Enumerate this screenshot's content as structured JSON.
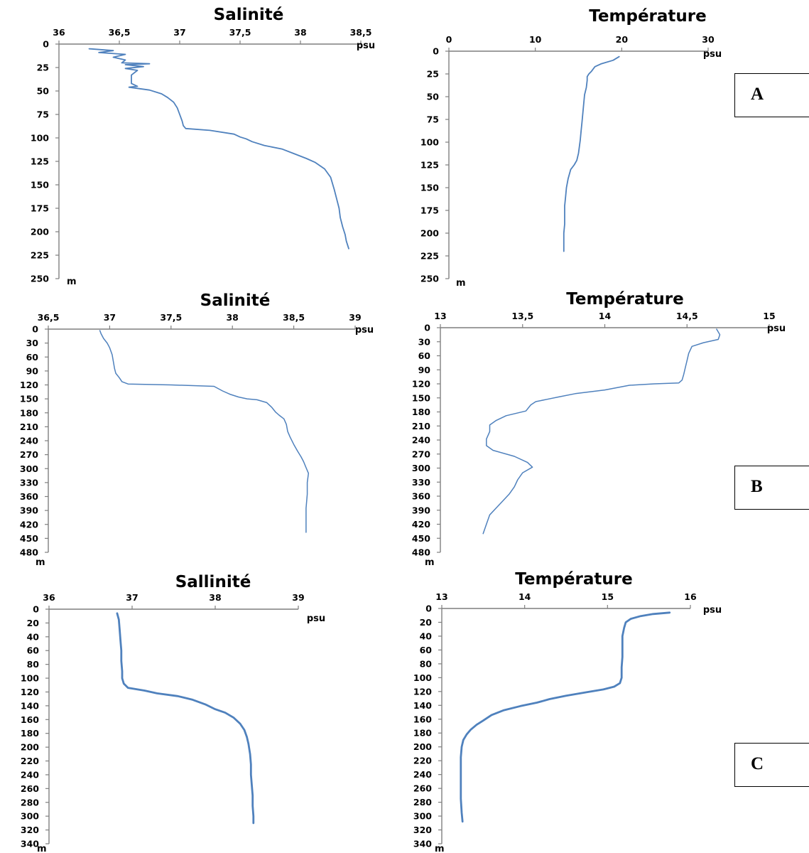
{
  "figure": {
    "line_color": "#4f81bd",
    "panels": [
      "A",
      "B",
      "C"
    ]
  },
  "chart_data": [
    {
      "type": "line",
      "title": "Salinité",
      "x_unit": "psu",
      "y_unit": "m",
      "x_ticks": [
        "36",
        "36,5",
        "37",
        "37,5",
        "38",
        "38,5"
      ],
      "xlim": [
        36,
        38.5
      ],
      "y_ticks": [
        "0",
        "25",
        "50",
        "75",
        "100",
        "125",
        "150",
        "175",
        "200",
        "225",
        "250"
      ],
      "ylim": [
        0,
        250
      ],
      "series": [
        {
          "values": [
            [
              36.25,
              5
            ],
            [
              36.45,
              7
            ],
            [
              36.33,
              9
            ],
            [
              36.55,
              11
            ],
            [
              36.45,
              14
            ],
            [
              36.55,
              17
            ],
            [
              36.52,
              20
            ],
            [
              36.75,
              21
            ],
            [
              36.55,
              22
            ],
            [
              36.7,
              24
            ],
            [
              36.55,
              26
            ],
            [
              36.65,
              28
            ],
            [
              36.6,
              33
            ],
            [
              36.6,
              38
            ],
            [
              36.6,
              42
            ],
            [
              36.65,
              45
            ],
            [
              36.58,
              46
            ],
            [
              36.75,
              49
            ],
            [
              36.85,
              53
            ],
            [
              36.9,
              57
            ],
            [
              36.95,
              62
            ],
            [
              36.98,
              68
            ],
            [
              37.0,
              75
            ],
            [
              37.02,
              82
            ],
            [
              37.03,
              87
            ],
            [
              37.05,
              90
            ],
            [
              37.25,
              92
            ],
            [
              37.45,
              96
            ],
            [
              37.5,
              99
            ],
            [
              37.55,
              101
            ],
            [
              37.6,
              104
            ],
            [
              37.7,
              108
            ],
            [
              37.85,
              112
            ],
            [
              37.95,
              117
            ],
            [
              38.05,
              122
            ],
            [
              38.12,
              126
            ],
            [
              38.2,
              133
            ],
            [
              38.25,
              142
            ],
            [
              38.28,
              155
            ],
            [
              38.3,
              165
            ],
            [
              38.32,
              175
            ],
            [
              38.33,
              185
            ],
            [
              38.35,
              195
            ],
            [
              38.37,
              203
            ],
            [
              38.38,
              210
            ],
            [
              38.4,
              218
            ]
          ]
        }
      ]
    },
    {
      "type": "line",
      "title": "Température",
      "x_unit": "psu",
      "y_unit": "m",
      "x_ticks": [
        "0",
        "10",
        "20",
        "30"
      ],
      "xlim": [
        0,
        30
      ],
      "y_ticks": [
        "0",
        "25",
        "50",
        "75",
        "100",
        "125",
        "150",
        "175",
        "200",
        "225",
        "250"
      ],
      "ylim": [
        0,
        250
      ],
      "series": [
        {
          "values": [
            [
              19.7,
              6
            ],
            [
              19.0,
              10
            ],
            [
              17.6,
              14
            ],
            [
              16.9,
              17
            ],
            [
              16.5,
              22
            ],
            [
              16.2,
              25
            ],
            [
              16.0,
              28
            ],
            [
              16.0,
              32
            ],
            [
              15.9,
              40
            ],
            [
              15.7,
              48
            ],
            [
              15.6,
              58
            ],
            [
              15.5,
              68
            ],
            [
              15.4,
              78
            ],
            [
              15.3,
              88
            ],
            [
              15.2,
              98
            ],
            [
              15.1,
              105
            ],
            [
              15.0,
              112
            ],
            [
              14.8,
              120
            ],
            [
              14.5,
              125
            ],
            [
              14.1,
              130
            ],
            [
              13.8,
              140
            ],
            [
              13.6,
              150
            ],
            [
              13.5,
              160
            ],
            [
              13.4,
              170
            ],
            [
              13.4,
              180
            ],
            [
              13.4,
              190
            ],
            [
              13.3,
              200
            ],
            [
              13.3,
              210
            ],
            [
              13.3,
              220
            ]
          ]
        }
      ]
    },
    {
      "type": "line",
      "title": "Salinité",
      "x_unit": "psu",
      "y_unit": "m",
      "x_ticks": [
        "36,5",
        "37",
        "37,5",
        "38",
        "38,5",
        "39"
      ],
      "xlim": [
        36.5,
        39
      ],
      "y_ticks": [
        "0",
        "30",
        "60",
        "90",
        "120",
        "150",
        "180",
        "210",
        "240",
        "270",
        "300",
        "330",
        "360",
        "390",
        "420",
        "450",
        "480"
      ],
      "ylim": [
        0,
        480
      ],
      "series": [
        {
          "values": [
            [
              36.92,
              3
            ],
            [
              36.93,
              10
            ],
            [
              36.95,
              20
            ],
            [
              36.98,
              30
            ],
            [
              37.0,
              40
            ],
            [
              37.02,
              55
            ],
            [
              37.03,
              70
            ],
            [
              37.04,
              85
            ],
            [
              37.05,
              95
            ],
            [
              37.08,
              105
            ],
            [
              37.1,
              113
            ],
            [
              37.15,
              118
            ],
            [
              37.5,
              120
            ],
            [
              37.85,
              123
            ],
            [
              37.92,
              133
            ],
            [
              37.98,
              140
            ],
            [
              38.05,
              146
            ],
            [
              38.12,
              150
            ],
            [
              38.2,
              152
            ],
            [
              38.28,
              158
            ],
            [
              38.32,
              168
            ],
            [
              38.35,
              178
            ],
            [
              38.38,
              185
            ],
            [
              38.42,
              193
            ],
            [
              38.44,
              205
            ],
            [
              38.45,
              220
            ],
            [
              38.47,
              232
            ],
            [
              38.5,
              248
            ],
            [
              38.53,
              262
            ],
            [
              38.56,
              275
            ],
            [
              38.58,
              285
            ],
            [
              38.6,
              298
            ],
            [
              38.62,
              310
            ],
            [
              38.61,
              330
            ],
            [
              38.61,
              355
            ],
            [
              38.6,
              385
            ],
            [
              38.6,
              410
            ],
            [
              38.6,
              437
            ]
          ]
        }
      ]
    },
    {
      "type": "line",
      "title": "Température",
      "x_unit": "psu",
      "y_unit": "m",
      "x_ticks": [
        "13",
        "13,5",
        "14",
        "14,5",
        "15"
      ],
      "xlim": [
        13,
        15
      ],
      "y_ticks": [
        "0",
        "30",
        "60",
        "90",
        "120",
        "150",
        "180",
        "210",
        "240",
        "270",
        "300",
        "330",
        "360",
        "390",
        "420",
        "450",
        "480"
      ],
      "ylim": [
        0,
        480
      ],
      "series": [
        {
          "values": [
            [
              14.68,
              3
            ],
            [
              14.7,
              15
            ],
            [
              14.69,
              25
            ],
            [
              14.6,
              32
            ],
            [
              14.53,
              40
            ],
            [
              14.51,
              55
            ],
            [
              14.5,
              70
            ],
            [
              14.49,
              85
            ],
            [
              14.48,
              100
            ],
            [
              14.47,
              112
            ],
            [
              14.45,
              118
            ],
            [
              14.3,
              120
            ],
            [
              14.15,
              123
            ],
            [
              14.0,
              133
            ],
            [
              13.82,
              141
            ],
            [
              13.72,
              148
            ],
            [
              13.65,
              153
            ],
            [
              13.58,
              158
            ],
            [
              13.55,
              165
            ],
            [
              13.52,
              178
            ],
            [
              13.4,
              188
            ],
            [
              13.34,
              198
            ],
            [
              13.3,
              208
            ],
            [
              13.3,
              222
            ],
            [
              13.28,
              238
            ],
            [
              13.28,
              252
            ],
            [
              13.32,
              262
            ],
            [
              13.45,
              275
            ],
            [
              13.53,
              288
            ],
            [
              13.56,
              298
            ],
            [
              13.5,
              310
            ],
            [
              13.47,
              325
            ],
            [
              13.45,
              340
            ],
            [
              13.42,
              355
            ],
            [
              13.38,
              370
            ],
            [
              13.34,
              385
            ],
            [
              13.3,
              400
            ],
            [
              13.28,
              420
            ],
            [
              13.26,
              440
            ]
          ]
        }
      ]
    },
    {
      "type": "line",
      "title": "Sallinité",
      "x_unit": "psu",
      "y_unit": "m",
      "x_ticks": [
        "36",
        "37",
        "38",
        "39"
      ],
      "xlim": [
        36,
        39
      ],
      "y_ticks": [
        "0",
        "20",
        "40",
        "60",
        "80",
        "100",
        "120",
        "140",
        "160",
        "180",
        "200",
        "220",
        "240",
        "260",
        "280",
        "300",
        "320",
        "340"
      ],
      "ylim": [
        0,
        340
      ],
      "series": [
        {
          "values": [
            [
              36.82,
              6
            ],
            [
              36.84,
              15
            ],
            [
              36.85,
              30
            ],
            [
              36.86,
              45
            ],
            [
              36.87,
              60
            ],
            [
              36.87,
              75
            ],
            [
              36.88,
              90
            ],
            [
              36.88,
              100
            ],
            [
              36.9,
              108
            ],
            [
              36.95,
              114
            ],
            [
              37.15,
              118
            ],
            [
              37.3,
              122
            ],
            [
              37.55,
              126
            ],
            [
              37.72,
              131
            ],
            [
              37.88,
              138
            ],
            [
              38.0,
              145
            ],
            [
              38.12,
              150
            ],
            [
              38.22,
              157
            ],
            [
              38.3,
              166
            ],
            [
              38.35,
              175
            ],
            [
              38.38,
              185
            ],
            [
              38.4,
              195
            ],
            [
              38.42,
              210
            ],
            [
              38.43,
              225
            ],
            [
              38.43,
              240
            ],
            [
              38.44,
              255
            ],
            [
              38.45,
              270
            ],
            [
              38.45,
              285
            ],
            [
              38.46,
              300
            ],
            [
              38.46,
              310
            ]
          ]
        }
      ]
    },
    {
      "type": "line",
      "title": "Température",
      "x_unit": "psu",
      "y_unit": "m",
      "x_ticks": [
        "13",
        "14",
        "15",
        "16"
      ],
      "xlim": [
        13,
        16
      ],
      "y_ticks": [
        "0",
        "20",
        "40",
        "60",
        "80",
        "100",
        "120",
        "140",
        "160",
        "180",
        "200",
        "220",
        "240",
        "260",
        "280",
        "300",
        "320",
        "340"
      ],
      "ylim": [
        0,
        340
      ],
      "series": [
        {
          "values": [
            [
              15.75,
              6
            ],
            [
              15.55,
              8
            ],
            [
              15.4,
              11
            ],
            [
              15.28,
              15
            ],
            [
              15.22,
              20
            ],
            [
              15.2,
              28
            ],
            [
              15.18,
              40
            ],
            [
              15.18,
              55
            ],
            [
              15.18,
              70
            ],
            [
              15.17,
              85
            ],
            [
              15.17,
              100
            ],
            [
              15.15,
              108
            ],
            [
              15.08,
              113
            ],
            [
              14.95,
              117
            ],
            [
              14.75,
              121
            ],
            [
              14.5,
              126
            ],
            [
              14.3,
              131
            ],
            [
              14.15,
              136
            ],
            [
              13.95,
              141
            ],
            [
              13.75,
              147
            ],
            [
              13.6,
              154
            ],
            [
              13.5,
              162
            ],
            [
              13.42,
              168
            ],
            [
              13.35,
              175
            ],
            [
              13.3,
              182
            ],
            [
              13.26,
              190
            ],
            [
              13.24,
              200
            ],
            [
              13.23,
              215
            ],
            [
              13.23,
              235
            ],
            [
              13.23,
              255
            ],
            [
              13.23,
              275
            ],
            [
              13.24,
              295
            ],
            [
              13.25,
              308
            ]
          ]
        }
      ]
    }
  ]
}
